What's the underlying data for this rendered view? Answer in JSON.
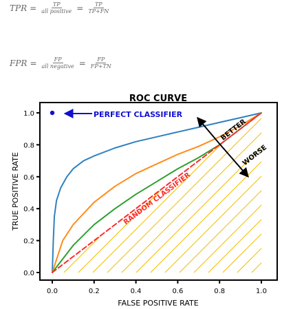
{
  "formulas": {
    "tpr": {
      "lhs": "TPR",
      "eq": "=",
      "frac1": {
        "num": "TP",
        "den": "all positive"
      },
      "frac2": {
        "num": "TP",
        "den": "TP+FN"
      }
    },
    "fpr": {
      "lhs": "FPR",
      "eq": "=",
      "frac1": {
        "num": "FP",
        "den": "all negative"
      },
      "frac2": {
        "num": "FP",
        "den": "FP+TN"
      }
    }
  },
  "chart_data": {
    "type": "line",
    "title": "ROC CURVE",
    "xlabel": "FALSE POSITIVE RATE",
    "ylabel": "TRUE POSITIVE RATE",
    "xlim": [
      -0.05,
      1.02
    ],
    "ylim": [
      -0.05,
      1.05
    ],
    "xticks": [
      0.0,
      0.2,
      0.4,
      0.6,
      0.8,
      1.0
    ],
    "yticks": [
      0.0,
      0.2,
      0.4,
      0.6,
      0.8,
      1.0
    ],
    "xtick_labels": [
      "0.0",
      "0.2",
      "0.4",
      "0.6",
      "0.8",
      "1.0"
    ],
    "ytick_labels": [
      "0.0",
      "0.2",
      "0.4",
      "0.6",
      "0.8",
      "1.0"
    ],
    "grid": false,
    "series": [
      {
        "color": "#2e80c0",
        "x": [
          0.0,
          0.005,
          0.01,
          0.02,
          0.04,
          0.07,
          0.1,
          0.15,
          0.2,
          0.3,
          0.4,
          0.5,
          0.6,
          0.7,
          0.8,
          0.9,
          1.0
        ],
        "y": [
          0.0,
          0.2,
          0.35,
          0.45,
          0.53,
          0.6,
          0.65,
          0.7,
          0.73,
          0.78,
          0.82,
          0.85,
          0.88,
          0.91,
          0.94,
          0.97,
          1.0
        ]
      },
      {
        "color": "#ff8c1a",
        "x": [
          0.0,
          0.05,
          0.1,
          0.2,
          0.3,
          0.4,
          0.5,
          0.6,
          0.7,
          0.8,
          0.9,
          1.0
        ],
        "y": [
          0.0,
          0.2,
          0.3,
          0.44,
          0.54,
          0.62,
          0.68,
          0.74,
          0.79,
          0.85,
          0.92,
          1.0
        ]
      },
      {
        "color": "#2ca02c",
        "x": [
          0.0,
          0.1,
          0.2,
          0.3,
          0.4,
          0.5,
          0.6,
          0.7,
          0.8,
          0.9,
          1.0
        ],
        "y": [
          0.0,
          0.17,
          0.3,
          0.4,
          0.49,
          0.57,
          0.65,
          0.72,
          0.8,
          0.9,
          1.0
        ]
      },
      {
        "name": "RANDOM CLASSIFIER",
        "color": "#ff2a2a",
        "dashed": true,
        "x": [
          0.0,
          1.0
        ],
        "y": [
          0.0,
          1.0
        ]
      }
    ],
    "perfect_point": {
      "x": 0.0,
      "y": 1.0,
      "color": "#1010d0"
    },
    "hatch_color": "#f5c000",
    "annotations": {
      "perfect": "PERFECT CLASSIFIER",
      "random": "RANDOM CLASSIFIER",
      "better": "BETTER",
      "worse": "WORSE"
    }
  }
}
